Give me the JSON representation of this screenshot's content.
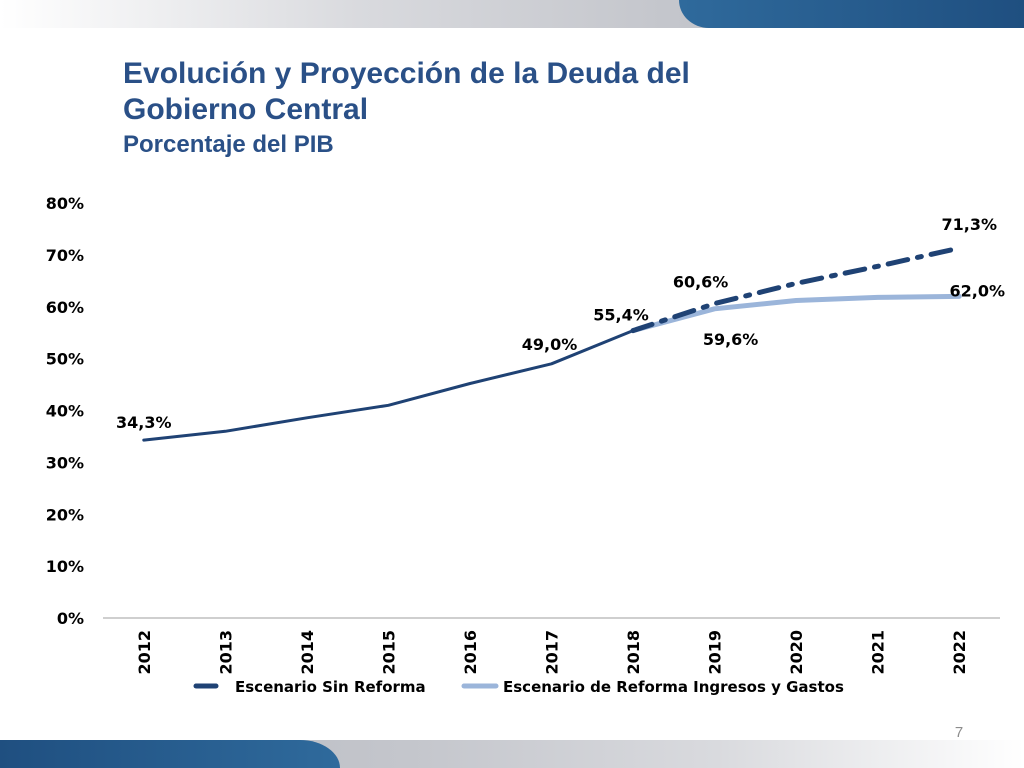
{
  "slide": {
    "title_line1": "Evolución y Proyección de la Deuda del",
    "title_line2": "Gobierno Central",
    "subtitle": "Porcentaje del PIB",
    "page_number": "7"
  },
  "colors": {
    "series_sin_reforma": "#1f4274",
    "series_reforma": "#9bb5da",
    "axis": "#bfbfbf"
  },
  "chart_data": {
    "type": "line",
    "title": "Evolución y Proyección de la Deuda del Gobierno Central",
    "subtitle": "Porcentaje del PIB",
    "categories": [
      "2012",
      "2013",
      "2014",
      "2015",
      "2016",
      "2017",
      "2018",
      "2019",
      "2020",
      "2021",
      "2022"
    ],
    "ylim": [
      0,
      80
    ],
    "yticks": [
      0,
      10,
      20,
      30,
      40,
      50,
      60,
      70,
      80
    ],
    "ytick_labels": [
      "0%",
      "10%",
      "20%",
      "30%",
      "40%",
      "50%",
      "60%",
      "70%",
      "80%"
    ],
    "grid": false,
    "legend_position": "bottom",
    "series": [
      {
        "name": "Escenario Sin Reforma",
        "values": [
          34.3,
          36.0,
          38.6,
          41.0,
          45.2,
          49.0,
          55.4,
          60.6,
          64.5,
          67.8,
          71.3
        ],
        "style": "dashed"
      },
      {
        "name": "Escenario de Reforma Ingresos y Gastos",
        "values": [
          null,
          null,
          null,
          null,
          null,
          null,
          55.4,
          59.6,
          61.2,
          61.8,
          62.0
        ],
        "style": "solid"
      }
    ],
    "data_labels": [
      {
        "series": 0,
        "index": 0,
        "text": "34,3%"
      },
      {
        "series": 0,
        "index": 5,
        "text": "49,0%"
      },
      {
        "series": 0,
        "index": 6,
        "text": "55,4%"
      },
      {
        "series": 0,
        "index": 7,
        "text": "60,6%"
      },
      {
        "series": 1,
        "index": 7,
        "text": "59,6%"
      },
      {
        "series": 0,
        "index": 10,
        "text": "71,3%"
      },
      {
        "series": 1,
        "index": 10,
        "text": "62,0%"
      }
    ]
  }
}
